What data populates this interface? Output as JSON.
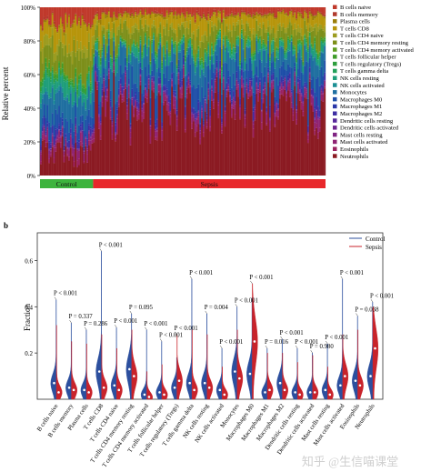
{
  "watermark": "知乎 @生信喵课堂",
  "chart_data": [
    {
      "panel": "a",
      "type": "stacked-bar",
      "ylabel": "Relative percent",
      "ylim": [
        0,
        100
      ],
      "yticks": [
        "0%",
        "20%",
        "40%",
        "60%",
        "80%",
        "100%"
      ],
      "groups": [
        {
          "name": "Control",
          "color": "#3db43d",
          "samples": 32
        },
        {
          "name": "Sepsis",
          "color": "#e8282b",
          "samples": 140
        }
      ],
      "categories": [
        {
          "name": "B cells naive",
          "color": "#c0392b",
          "mean": 3.5
        },
        {
          "name": "B cells memory",
          "color": "#b03a2e",
          "mean": 1.0
        },
        {
          "name": "Plasma cells",
          "color": "#9a7d0a",
          "mean": 1.5
        },
        {
          "name": "T cells CD8",
          "color": "#b7950b",
          "mean": 6.0
        },
        {
          "name": "T cells CD4 naive",
          "color": "#9c9c20",
          "mean": 3.0
        },
        {
          "name": "T cells CD4 memory resting",
          "color": "#7d8f1a",
          "mean": 8.0
        },
        {
          "name": "T cells CD4 memory activated",
          "color": "#5e9e20",
          "mean": 0.5
        },
        {
          "name": "T cells follicular helper",
          "color": "#3f9c2a",
          "mean": 1.0
        },
        {
          "name": "T cells regulatory (Tregs)",
          "color": "#2e9e3e",
          "mean": 1.0
        },
        {
          "name": "T cells gamma delta",
          "color": "#23a05a",
          "mean": 0.5
        },
        {
          "name": "NK cells resting",
          "color": "#1f9e7a",
          "mean": 4.0
        },
        {
          "name": "NK cells activated",
          "color": "#1c8f94",
          "mean": 1.0
        },
        {
          "name": "Monocytes",
          "color": "#1f6fa0",
          "mean": 12.0
        },
        {
          "name": "Macrophages M0",
          "color": "#1f4fa8",
          "mean": 7.0
        },
        {
          "name": "Macrophages M1",
          "color": "#2a37a8",
          "mean": 1.0
        },
        {
          "name": "Macrophages M2",
          "color": "#3f2fa3",
          "mean": 3.0
        },
        {
          "name": "Dendritic cells resting",
          "color": "#57289a",
          "mean": 0.5
        },
        {
          "name": "Dendritic cells activated",
          "color": "#6d2590",
          "mean": 0.5
        },
        {
          "name": "Mast cells resting",
          "color": "#802483",
          "mean": 1.0
        },
        {
          "name": "Mast cells activated",
          "color": "#8f2373",
          "mean": 3.5
        },
        {
          "name": "Eosinophils",
          "color": "#9a2260",
          "mean": 2.5
        },
        {
          "name": "Neutrophils",
          "color": "#8b1a22",
          "mean": 38.0
        }
      ]
    },
    {
      "panel": "b",
      "type": "violin",
      "ylabel": "Fraction",
      "ylim": [
        0,
        0.72
      ],
      "yticks": [
        "0.2",
        "0.4",
        "0.6"
      ],
      "ytick_values": [
        0.2,
        0.4,
        0.6
      ],
      "series": [
        {
          "name": "Control",
          "color": "#2c4f9e"
        },
        {
          "name": "Sepsis",
          "color": "#c8232b"
        }
      ],
      "categories": [
        {
          "name": "B cells naive",
          "p": "P < 0.001",
          "control_max": 0.43,
          "sepsis_max": 0.32,
          "control_med": 0.07,
          "sepsis_med": 0.03
        },
        {
          "name": "B cells memory",
          "p": "P = 0.337",
          "control_max": 0.33,
          "sepsis_max": 0.25,
          "control_med": 0.05,
          "sepsis_med": 0.04
        },
        {
          "name": "Plasma cells",
          "p": "P = 0.286",
          "control_max": 0.3,
          "sepsis_max": 0.24,
          "control_med": 0.04,
          "sepsis_med": 0.03
        },
        {
          "name": "T cells CD8",
          "p": "P < 0.001",
          "control_max": 0.64,
          "sepsis_max": 0.28,
          "control_med": 0.12,
          "sepsis_med": 0.05
        },
        {
          "name": "T cells CD4 naive",
          "p": "P < 0.001",
          "control_max": 0.31,
          "sepsis_max": 0.22,
          "control_med": 0.06,
          "sepsis_med": 0.04
        },
        {
          "name": "T cells CD4 memory resting",
          "p": "P = 0.095",
          "control_max": 0.37,
          "sepsis_max": 0.3,
          "control_med": 0.13,
          "sepsis_med": 0.1
        },
        {
          "name": "T cells CD4 memory activated",
          "p": "P < 0.001",
          "control_max": 0.3,
          "sepsis_max": 0.12,
          "control_med": 0.02,
          "sepsis_med": 0.01
        },
        {
          "name": "T cells follicular helper",
          "p": "P < 0.001",
          "control_max": 0.25,
          "sepsis_max": 0.15,
          "control_med": 0.03,
          "sepsis_med": 0.02
        },
        {
          "name": "T cells regulatory (Tregs)",
          "p": "P < 0.001",
          "control_max": 0.18,
          "sepsis_max": 0.28,
          "control_med": 0.05,
          "sepsis_med": 0.08
        },
        {
          "name": "T cells gamma delta",
          "p": "P < 0.001",
          "control_max": 0.52,
          "sepsis_max": 0.3,
          "control_med": 0.07,
          "sepsis_med": 0.04
        },
        {
          "name": "NK cells resting",
          "p": "P = 0.004",
          "control_max": 0.37,
          "sepsis_max": 0.28,
          "control_med": 0.07,
          "sepsis_med": 0.05
        },
        {
          "name": "NK cells activated",
          "p": "P < 0.001",
          "control_max": 0.22,
          "sepsis_max": 0.14,
          "control_med": 0.04,
          "sepsis_med": 0.02
        },
        {
          "name": "Monocytes",
          "p": "P < 0.001",
          "control_max": 0.4,
          "sepsis_max": 0.3,
          "control_med": 0.12,
          "sepsis_med": 0.09
        },
        {
          "name": "Macrophages M0",
          "p": "P < 0.001",
          "control_max": 0.44,
          "sepsis_max": 0.5,
          "control_med": 0.11,
          "sepsis_med": 0.25
        },
        {
          "name": "Macrophages M1",
          "p": "P = 0.016",
          "control_max": 0.22,
          "sepsis_max": 0.2,
          "control_med": 0.03,
          "sepsis_med": 0.04
        },
        {
          "name": "Macrophages M2",
          "p": "P < 0.001",
          "control_max": 0.26,
          "sepsis_max": 0.2,
          "control_med": 0.07,
          "sepsis_med": 0.04
        },
        {
          "name": "Dendritic cells resting",
          "p": "P < 0.001",
          "control_max": 0.22,
          "sepsis_max": 0.16,
          "control_med": 0.03,
          "sepsis_med": 0.02
        },
        {
          "name": "Dendritic cells activated",
          "p": "P = 0.980",
          "control_max": 0.2,
          "sepsis_max": 0.19,
          "control_med": 0.03,
          "sepsis_med": 0.03
        },
        {
          "name": "Mast cells resting",
          "p": "P < 0.001",
          "control_max": 0.24,
          "sepsis_max": 0.14,
          "control_med": 0.04,
          "sepsis_med": 0.02
        },
        {
          "name": "Mast cells activated",
          "p": "P < 0.001",
          "control_max": 0.52,
          "sepsis_max": 0.28,
          "control_med": 0.06,
          "sepsis_med": 0.1
        },
        {
          "name": "Eosinophils",
          "p": "P = 0.038",
          "control_max": 0.36,
          "sepsis_max": 0.3,
          "control_med": 0.08,
          "sepsis_med": 0.06
        },
        {
          "name": "Neutrophils",
          "p": "P < 0.001",
          "control_max": 0.42,
          "sepsis_max": 0.4,
          "control_med": 0.1,
          "sepsis_med": 0.22
        }
      ]
    }
  ]
}
